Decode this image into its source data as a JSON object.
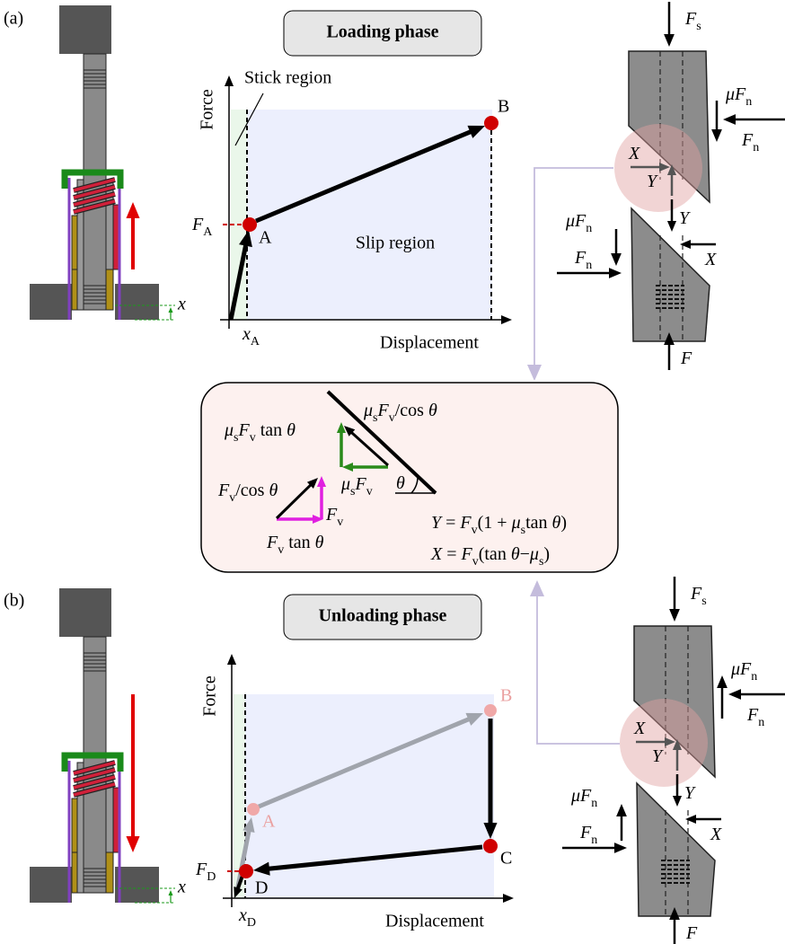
{
  "panel_a": {
    "label": "(a)",
    "phase": "Loading phase",
    "plot": {
      "y_axis": "Force",
      "x_axis": "Displacement",
      "stick_region": "Stick region",
      "slip_region": "Slip region",
      "points": [
        "A",
        "B"
      ],
      "force_label": {
        "base": "F",
        "sub": "A"
      },
      "disp_label": {
        "base": "x",
        "sub": "A"
      }
    },
    "displacement": "x",
    "wedge": {
      "top_force": {
        "base": "F",
        "sub": "s"
      },
      "friction_upper": {
        "pre": "μ",
        "base": "F",
        "sub": "n"
      },
      "normal_upper": {
        "base": "F",
        "sub": "n"
      },
      "x_upper": {
        "base": "X"
      },
      "y_upper": {
        "base": "Y"
      },
      "friction_lower": {
        "pre": "μ",
        "base": "F",
        "sub": "n"
      },
      "normal_lower": {
        "base": "F",
        "sub": "n"
      },
      "y_lower": {
        "base": "Y"
      },
      "x_lower": {
        "base": "X"
      },
      "bottom_force": {
        "base": "F"
      }
    }
  },
  "detail": {
    "hyp": [
      {
        "base": "μ",
        "sub": "s"
      },
      {
        "base": "F",
        "sub": "v"
      },
      "/cos ",
      {
        "base": "θ"
      }
    ],
    "vert": [
      {
        "base": "μ",
        "sub": "s"
      },
      {
        "base": "F",
        "sub": "v"
      },
      " tan ",
      {
        "base": "θ"
      }
    ],
    "horiz": [
      {
        "base": "μ",
        "sub": "s"
      },
      {
        "base": "F",
        "sub": "v"
      }
    ],
    "theta": {
      "base": "θ"
    },
    "fv_cos": [
      {
        "base": "F",
        "sub": "v"
      },
      "/cos ",
      {
        "base": "θ"
      }
    ],
    "fv": {
      "base": "F",
      "sub": "v"
    },
    "fv_tan": [
      {
        "base": "F",
        "sub": "v"
      },
      " tan ",
      {
        "base": "θ"
      }
    ],
    "y_eq": [
      {
        "base": "Y"
      },
      " = ",
      {
        "base": "F",
        "sub": "v"
      },
      "(1 + ",
      {
        "base": "μ",
        "sub": "s"
      },
      "tan ",
      {
        "base": "θ"
      },
      ")"
    ],
    "x_eq": [
      {
        "base": "X"
      },
      " = ",
      {
        "base": "F",
        "sub": "v"
      },
      "(tan ",
      {
        "base": "θ"
      },
      "−",
      {
        "base": "μ",
        "sub": "s"
      },
      ")"
    ]
  },
  "panel_b": {
    "label": "(b)",
    "phase": "Unloading phase",
    "plot": {
      "y_axis": "Force",
      "x_axis": "Displacement",
      "points": [
        "A",
        "B",
        "C",
        "D"
      ],
      "force_label": {
        "base": "F",
        "sub": "D"
      },
      "disp_label": {
        "base": "x",
        "sub": "D"
      }
    },
    "displacement": "x",
    "wedge": {
      "top_force": {
        "base": "F",
        "sub": "s"
      },
      "friction_upper": {
        "pre": "μ",
        "base": "F",
        "sub": "n"
      },
      "normal_upper": {
        "base": "F",
        "sub": "n"
      },
      "x_upper": {
        "base": "X"
      },
      "y_upper": {
        "base": "Y"
      },
      "friction_lower": {
        "pre": "μ",
        "base": "F",
        "sub": "n"
      },
      "normal_lower": {
        "base": "F",
        "sub": "n"
      },
      "y_lower": {
        "base": "Y"
      },
      "x_lower": {
        "base": "X"
      },
      "bottom_force": {
        "base": "F"
      }
    }
  }
}
